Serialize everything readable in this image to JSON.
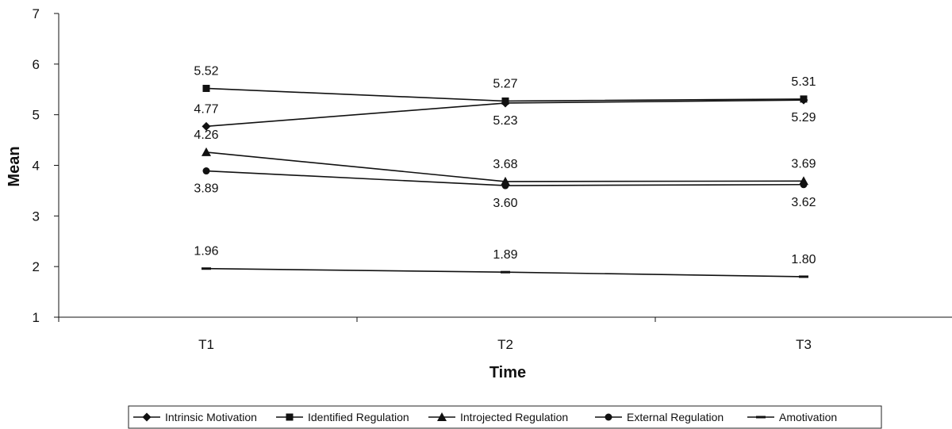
{
  "chart_data": {
    "type": "line",
    "title": "",
    "xlabel": "Time",
    "ylabel": "Mean",
    "categories": [
      "T1",
      "T2",
      "T3"
    ],
    "ylim": [
      1,
      7
    ],
    "yticks": [
      "1",
      "2",
      "3",
      "4",
      "5",
      "6",
      "7"
    ],
    "grid": false,
    "legend_position": "bottom",
    "series": [
      {
        "name": "Intrinsic Motivation",
        "marker": "diamond",
        "values": [
          4.77,
          5.23,
          5.29
        ],
        "labels": [
          "4.77",
          "5.23",
          "5.29"
        ],
        "label_side": [
          "above",
          "below",
          "below"
        ]
      },
      {
        "name": "Identified Regulation",
        "marker": "square",
        "values": [
          5.52,
          5.27,
          5.31
        ],
        "labels": [
          "5.52",
          "5.27",
          "5.31"
        ],
        "label_side": [
          "above",
          "above",
          "above"
        ]
      },
      {
        "name": "Introjected Regulation",
        "marker": "triangle",
        "values": [
          4.26,
          3.68,
          3.69
        ],
        "labels": [
          "4.26",
          "3.68",
          "3.69"
        ],
        "label_side": [
          "above",
          "above",
          "above"
        ]
      },
      {
        "name": "External Regulation",
        "marker": "circle",
        "values": [
          3.89,
          3.6,
          3.62
        ],
        "labels": [
          "3.89",
          "3.60",
          "3.62"
        ],
        "label_side": [
          "below",
          "below",
          "below"
        ]
      },
      {
        "name": "Amotivation",
        "marker": "dash",
        "values": [
          1.96,
          1.89,
          1.8
        ],
        "labels": [
          "1.96",
          "1.89",
          "1.80"
        ],
        "label_side": [
          "above",
          "above",
          "above"
        ]
      }
    ],
    "colors": {
      "line": "#111111",
      "marker": "#111111",
      "background": "#ffffff"
    }
  }
}
